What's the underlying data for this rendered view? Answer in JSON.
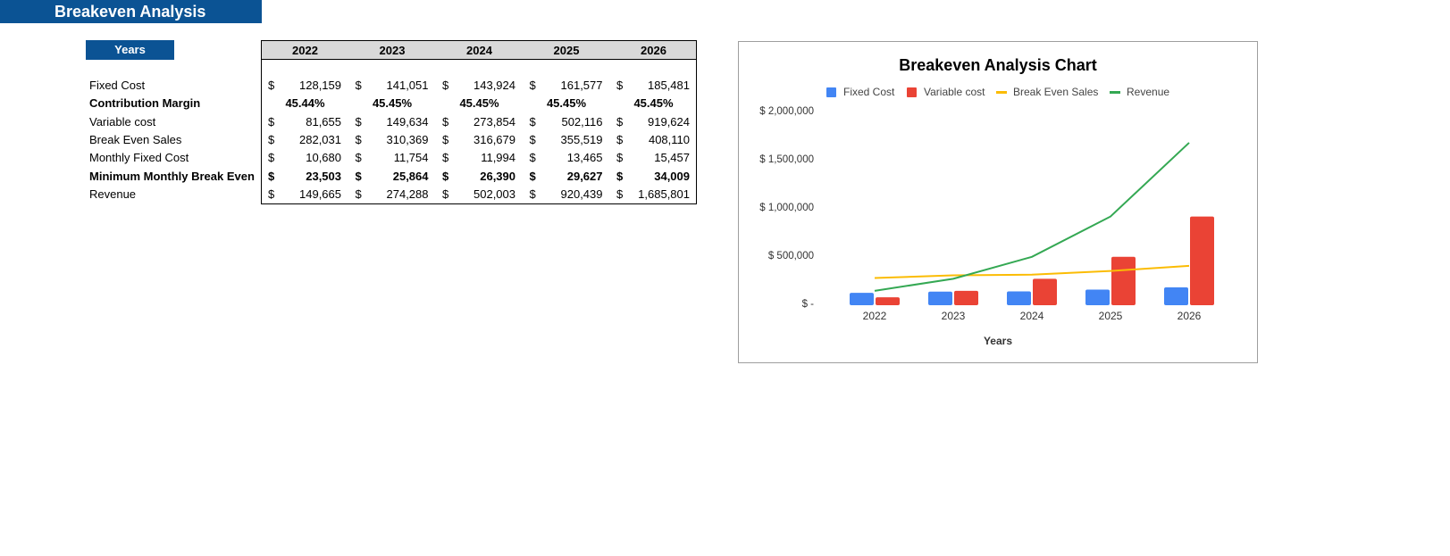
{
  "page": {
    "title": "Breakeven Analysis",
    "years_label": "Years"
  },
  "table": {
    "years": [
      "2022",
      "2023",
      "2024",
      "2025",
      "2026"
    ],
    "currency_symbol": "$",
    "rows": [
      {
        "label": "Fixed Cost",
        "bold": false,
        "type": "currency",
        "values": [
          "128,159",
          "141,051",
          "143,924",
          "161,577",
          "185,481"
        ]
      },
      {
        "label": "Contribution Margin",
        "bold": true,
        "type": "percent",
        "values": [
          "45.44%",
          "45.45%",
          "45.45%",
          "45.45%",
          "45.45%"
        ]
      },
      {
        "label": "Variable cost",
        "bold": false,
        "type": "currency",
        "values": [
          "81,655",
          "149,634",
          "273,854",
          "502,116",
          "919,624"
        ]
      },
      {
        "label": "Break Even Sales",
        "bold": false,
        "type": "currency",
        "values": [
          "282,031",
          "310,369",
          "316,679",
          "355,519",
          "408,110"
        ]
      },
      {
        "label": "Monthly Fixed Cost",
        "bold": false,
        "type": "currency",
        "values": [
          "10,680",
          "11,754",
          "11,994",
          "13,465",
          "15,457"
        ]
      },
      {
        "label": "Minimum Monthly Break Even",
        "bold": true,
        "type": "currency",
        "values": [
          "23,503",
          "25,864",
          "26,390",
          "29,627",
          "34,009"
        ]
      },
      {
        "label": "Revenue",
        "bold": false,
        "type": "currency",
        "values": [
          "149,665",
          "274,288",
          "502,003",
          "920,439",
          "1,685,801"
        ]
      }
    ]
  },
  "chart_data": {
    "type": "bar",
    "title": "Breakeven Analysis Chart",
    "xlabel": "Years",
    "ylabel": "",
    "categories": [
      "2022",
      "2023",
      "2024",
      "2025",
      "2026"
    ],
    "ylim": [
      0,
      2000000
    ],
    "y_ticks": [
      {
        "value": 2000000,
        "label": "$ 2,000,000"
      },
      {
        "value": 1500000,
        "label": "$ 1,500,000"
      },
      {
        "value": 1000000,
        "label": "$ 1,000,000"
      },
      {
        "value": 500000,
        "label": "$ 500,000"
      },
      {
        "value": 0,
        "label": "$ -"
      }
    ],
    "grid": false,
    "legend_position": "top",
    "series": [
      {
        "name": "Fixed Cost",
        "type": "bar",
        "color": "#4285f4",
        "values": [
          128159,
          141051,
          143924,
          161577,
          185481
        ]
      },
      {
        "name": "Variable cost",
        "type": "bar",
        "color": "#ea4335",
        "values": [
          81655,
          149634,
          273854,
          502116,
          919624
        ]
      },
      {
        "name": "Break Even Sales",
        "type": "line",
        "color": "#fbbc04",
        "values": [
          282031,
          310369,
          316679,
          355519,
          408110
        ]
      },
      {
        "name": "Revenue",
        "type": "line",
        "color": "#34a853",
        "values": [
          149665,
          274288,
          502003,
          920439,
          1685801
        ]
      }
    ]
  }
}
